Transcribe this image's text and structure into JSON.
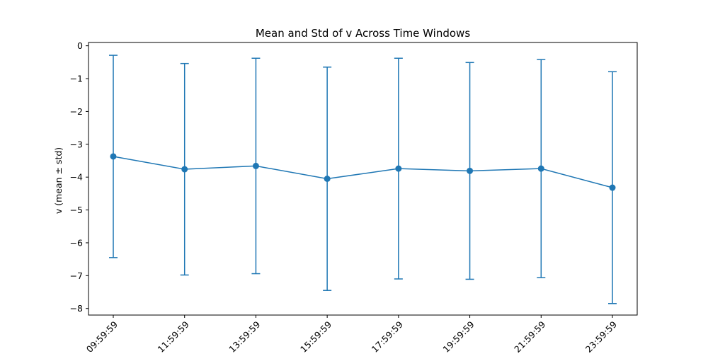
{
  "chart_data": {
    "type": "line",
    "title": "Mean and Std of v Across Time Windows",
    "xlabel": "",
    "ylabel": "v (mean ± std)",
    "categories": [
      "09:59:59",
      "11:59:59",
      "13:59:59",
      "15:59:59",
      "17:59:59",
      "19:59:59",
      "21:59:59",
      "23:59:59"
    ],
    "series": [
      {
        "mean": [
          -3.37,
          -3.76,
          -3.66,
          -4.05,
          -3.74,
          -3.81,
          -3.74,
          -4.32
        ],
        "std": [
          3.08,
          3.22,
          3.28,
          3.4,
          3.36,
          3.3,
          3.32,
          3.53
        ]
      }
    ],
    "ylim": [
      -8.2,
      0.1
    ],
    "yticks": [
      0,
      -1,
      -2,
      -3,
      -4,
      -5,
      -6,
      -7,
      -8
    ],
    "ytick_labels": [
      "0",
      "−1",
      "−2",
      "−3",
      "−4",
      "−5",
      "−6",
      "−7",
      "−8"
    ],
    "grid": false,
    "line_color": "#1f77b4",
    "marker": "circle",
    "error_bars": true
  }
}
